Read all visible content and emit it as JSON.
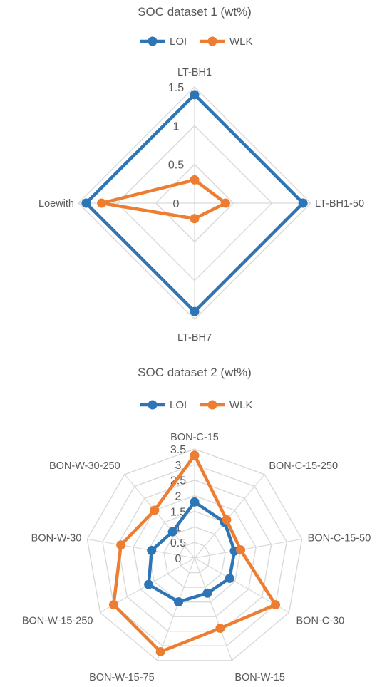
{
  "chart_data": [
    {
      "type": "radar",
      "title": "SOC dataset 1 (wt%)",
      "categories": [
        "LT-BH1",
        "LT-BH1-50",
        "LT-BH7",
        "Loewith"
      ],
      "series": [
        {
          "name": "LOI",
          "color": "#2e75b6",
          "values": [
            1.4,
            1.4,
            1.4,
            1.4
          ]
        },
        {
          "name": "WLK",
          "color": "#ed7d31",
          "values": [
            0.3,
            0.4,
            0.2,
            1.2
          ]
        }
      ],
      "ticks": [
        "0",
        "0.5",
        "1",
        "1.5"
      ],
      "rmax": 1.5,
      "legend_position": "top",
      "grid": true
    },
    {
      "type": "radar",
      "title": "SOC dataset 2 (wt%)",
      "categories": [
        "BON-C-15",
        "BON-C-15-250",
        "BON-C-15-50",
        "BON-C-30",
        "BON-W-15",
        "BON-W-15-75",
        "BON-W-15-250",
        "BON-W-30",
        "BON-W-30-250"
      ],
      "series": [
        {
          "name": "LOI",
          "color": "#2e75b6",
          "values": [
            1.8,
            1.5,
            1.3,
            1.3,
            1.2,
            1.5,
            1.7,
            1.4,
            1.1
          ]
        },
        {
          "name": "WLK",
          "color": "#ed7d31",
          "values": [
            3.3,
            1.6,
            1.5,
            3.0,
            2.4,
            3.2,
            3.0,
            2.4,
            2.0
          ]
        }
      ],
      "ticks": [
        "0",
        "0.5",
        "1",
        "1.5",
        "2",
        "2.5",
        "3",
        "3.5"
      ],
      "rmax": 3.5,
      "legend_position": "top",
      "grid": true
    }
  ]
}
